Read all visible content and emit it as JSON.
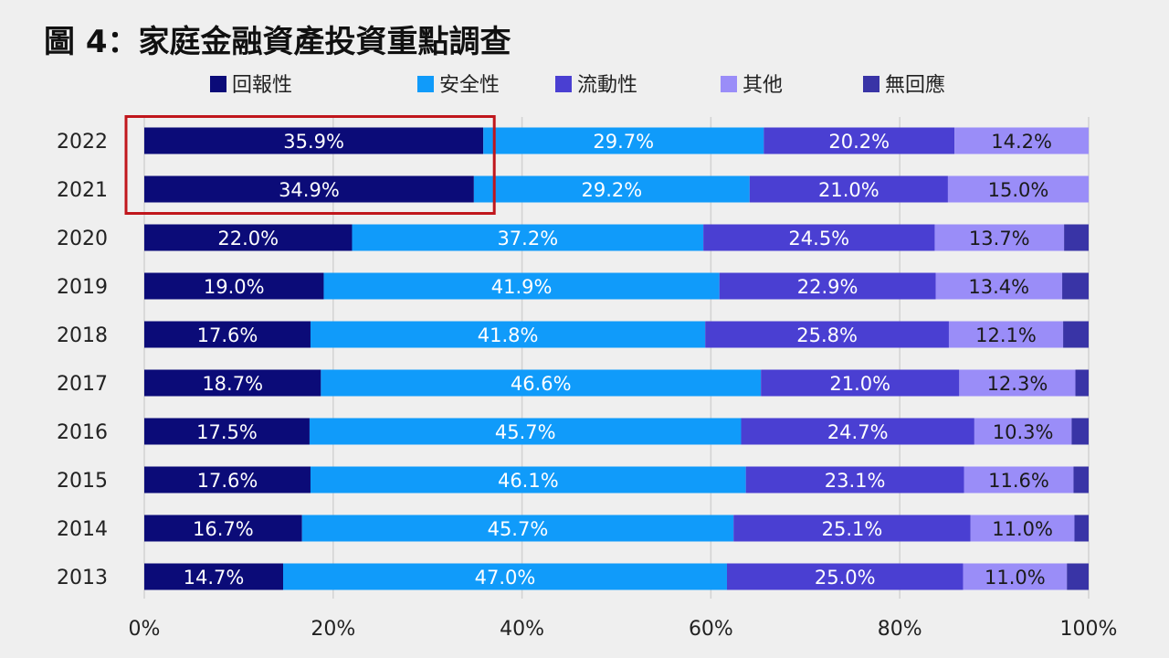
{
  "title": "圖 4：家庭金融資產投資重點調查",
  "chart_data": {
    "type": "bar",
    "orientation": "horizontal",
    "stacked": true,
    "title": "圖 4：家庭金融資產投資重點調查",
    "xlabel": "",
    "ylabel": "",
    "xlim": [
      0,
      100
    ],
    "x_ticks": [
      "0%",
      "20%",
      "40%",
      "60%",
      "80%",
      "100%"
    ],
    "legend_position": "top",
    "categories": [
      "2022",
      "2021",
      "2020",
      "2019",
      "2018",
      "2017",
      "2016",
      "2015",
      "2014",
      "2013"
    ],
    "series": [
      {
        "name": "回報性",
        "color": "#0b0b78",
        "values": [
          35.9,
          34.9,
          22.0,
          19.0,
          17.6,
          18.7,
          17.5,
          17.6,
          16.7,
          14.7
        ]
      },
      {
        "name": "安全性",
        "color": "#109bfa",
        "values": [
          29.7,
          29.2,
          37.2,
          41.9,
          41.8,
          46.6,
          45.7,
          46.1,
          45.7,
          47.0
        ]
      },
      {
        "name": "流動性",
        "color": "#4a3fd2",
        "values": [
          20.2,
          21.0,
          24.5,
          22.9,
          25.8,
          21.0,
          24.7,
          23.1,
          25.1,
          25.0
        ]
      },
      {
        "name": "其他",
        "color": "#9a8df8",
        "values": [
          14.2,
          15.0,
          13.7,
          13.4,
          12.1,
          12.3,
          10.3,
          11.6,
          11.0,
          11.0
        ]
      },
      {
        "name": "無回應",
        "color": "#3934a6",
        "values": [
          0,
          0,
          2.6,
          2.8,
          2.7,
          1.4,
          1.8,
          1.6,
          1.5,
          2.3
        ]
      }
    ],
    "value_labels": [
      [
        "35.9%",
        "34.9%",
        "22.0%",
        "19.0%",
        "17.6%",
        "18.7%",
        "17.5%",
        "17.6%",
        "16.7%",
        "14.7%"
      ],
      [
        "29.7%",
        "29.2%",
        "37.2%",
        "41.9%",
        "41.8%",
        "46.6%",
        "45.7%",
        "46.1%",
        "45.7%",
        "47.0%"
      ],
      [
        "20.2%",
        "21.0%",
        "24.5%",
        "22.9%",
        "25.8%",
        "21.0%",
        "24.7%",
        "23.1%",
        "25.1%",
        "25.0%"
      ],
      [
        "14.2%",
        "15.0%",
        "13.7%",
        "13.4%",
        "12.1%",
        "12.3%",
        "10.3%",
        "11.6%",
        "11.0%",
        "11.0%"
      ]
    ],
    "highlight": {
      "categories": [
        "2022",
        "2021"
      ],
      "series": "回報性",
      "color": "#c0161c"
    }
  }
}
